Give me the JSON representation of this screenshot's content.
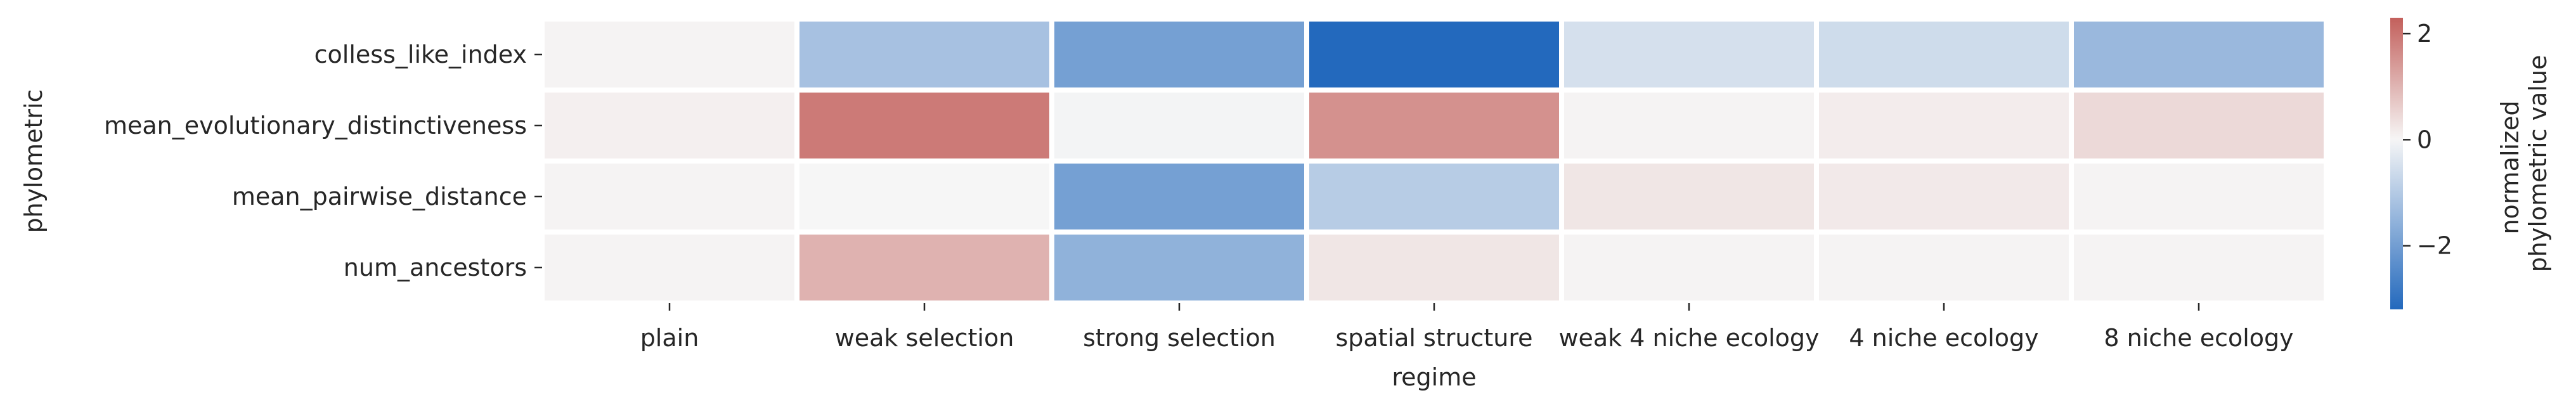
{
  "chart_data": {
    "type": "heatmap",
    "xlabel": "regime",
    "ylabel": "phylometric",
    "x_categories": [
      "plain",
      "weak selection",
      "strong selection",
      "spatial structure",
      "weak 4 niche ecology",
      "4 niche ecology",
      "8 niche ecology"
    ],
    "y_categories": [
      "colless_like_index",
      "mean_evolutionary_distinctiveness",
      "mean_pairwise_distance",
      "num_ancestors"
    ],
    "values": [
      [
        0.05,
        -1.2,
        -1.95,
        -3.2,
        -0.5,
        -0.6,
        -1.4
      ],
      [
        0.1,
        1.9,
        -0.05,
        1.55,
        0.05,
        0.15,
        0.45
      ],
      [
        0.05,
        0.0,
        -1.95,
        -0.95,
        0.25,
        0.2,
        0.05
      ],
      [
        0.05,
        1.05,
        -1.55,
        0.25,
        0.05,
        0.05,
        0.05
      ]
    ],
    "colorbar": {
      "label_lines": [
        "normalized",
        "phylometric value"
      ],
      "range": [
        -3.2,
        2.3
      ],
      "ticks": [
        2,
        0,
        -2
      ],
      "tick_labels": [
        "2",
        "0",
        "−2"
      ],
      "colormap": "vlag",
      "low_color": "#2369bd",
      "mid_color": "#f6f6f6",
      "high_color": "#c3605c"
    },
    "grid": false,
    "cell_separator_color": "#ffffff"
  }
}
